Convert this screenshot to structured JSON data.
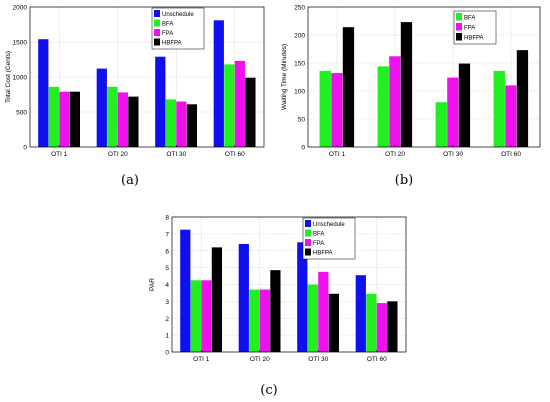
{
  "captions": {
    "a": "(a)",
    "b": "(b)",
    "c": "(c)"
  },
  "colors": {
    "series": [
      "#1010ee",
      "#22ee22",
      "#ee11ee",
      "#000000"
    ]
  },
  "chart_data": [
    {
      "id": "a",
      "type": "bar",
      "title": "",
      "xlabel": "",
      "ylabel": "Total Cost (Cents)",
      "categories": [
        "OTI 1",
        "OTI 20",
        "OTI 30",
        "OTI 60"
      ],
      "ylim": [
        0,
        2000
      ],
      "yticks": [
        0,
        500,
        1000,
        1500,
        2000
      ],
      "grid": true,
      "legend": "top-right",
      "series": [
        {
          "name": "Unschedule",
          "values": [
            1540,
            1120,
            1290,
            1810
          ]
        },
        {
          "name": "BFA",
          "values": [
            860,
            860,
            680,
            1180
          ]
        },
        {
          "name": "FPA",
          "values": [
            790,
            780,
            650,
            1230
          ]
        },
        {
          "name": "HBFPA",
          "values": [
            790,
            720,
            610,
            990
          ]
        }
      ]
    },
    {
      "id": "b",
      "type": "bar",
      "title": "",
      "xlabel": "",
      "ylabel": "Waiting Time (Minutes)",
      "categories": [
        "OTI 1",
        "OTI 20",
        "OTI 30",
        "OTI 60"
      ],
      "ylim": [
        0,
        250
      ],
      "yticks": [
        0,
        50,
        100,
        150,
        200,
        250
      ],
      "grid": true,
      "legend": "top-left",
      "series": [
        {
          "name": "BFA",
          "values": [
            136,
            144,
            80,
            136
          ]
        },
        {
          "name": "FPA",
          "values": [
            132,
            162,
            124,
            110
          ]
        },
        {
          "name": "HBFPA",
          "values": [
            214,
            223,
            149,
            173
          ]
        }
      ]
    },
    {
      "id": "c",
      "type": "bar",
      "title": "",
      "xlabel": "",
      "ylabel": "PAR",
      "categories": [
        "OTI 1",
        "OTI 20",
        "OTI 30",
        "OTI 60"
      ],
      "ylim": [
        0,
        8
      ],
      "yticks": [
        0,
        1,
        2,
        3,
        4,
        5,
        6,
        7,
        8
      ],
      "grid": true,
      "legend": "top-right",
      "series": [
        {
          "name": "Unschedule",
          "values": [
            7.25,
            6.4,
            6.5,
            4.55
          ]
        },
        {
          "name": "BFA",
          "values": [
            4.25,
            3.7,
            4.0,
            3.45
          ]
        },
        {
          "name": "FPA",
          "values": [
            4.25,
            3.7,
            4.75,
            2.9
          ]
        },
        {
          "name": "HBFPA",
          "values": [
            6.2,
            4.85,
            3.45,
            3.0
          ]
        }
      ]
    }
  ]
}
